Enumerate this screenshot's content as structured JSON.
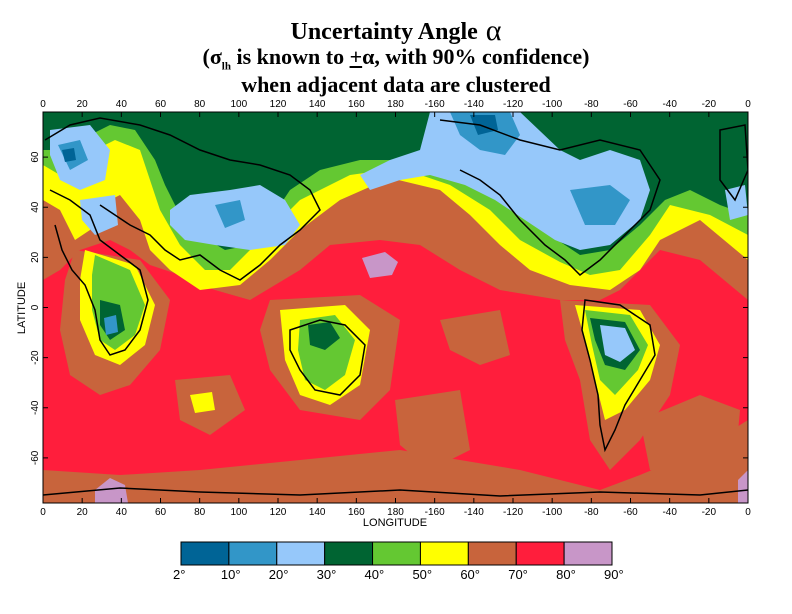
{
  "title": {
    "line1": "Uncertainty Angle",
    "line1_symbol": "α",
    "line2_open": "(",
    "line2_sigma": "σ",
    "line2_sub": "lh",
    "line2_text": " is known to ",
    "line2_pm": "+",
    "line2_alpha": "α",
    "line2_rest": ", with 90% confidence)",
    "line3": "when adjacent data are clustered"
  },
  "axes": {
    "xlabel": "LONGITUDE",
    "ylabel": "LATITUDE",
    "x_ticks": [
      "0",
      "20",
      "40",
      "60",
      "80",
      "100",
      "120",
      "140",
      "160",
      "180",
      "-160",
      "-140",
      "-120",
      "-100",
      "-80",
      "-60",
      "-40",
      "-20",
      "0"
    ],
    "y_ticks": [
      "60",
      "40",
      "20",
      "0",
      "-20",
      "-40",
      "-60"
    ]
  },
  "legend": {
    "labels": [
      "2°",
      "10°",
      "20°",
      "30°",
      "40°",
      "50°",
      "60°",
      "70°",
      "80°",
      "90°"
    ],
    "colors": [
      "#006496",
      "#3296c8",
      "#96c8fa",
      "#006432",
      "#64c832",
      "#ffff00",
      "#c8643c",
      "#ff1e3c",
      "#c896c8"
    ]
  },
  "colors": {
    "ocean_default": "#ff1e3c",
    "coast": "#000000"
  }
}
